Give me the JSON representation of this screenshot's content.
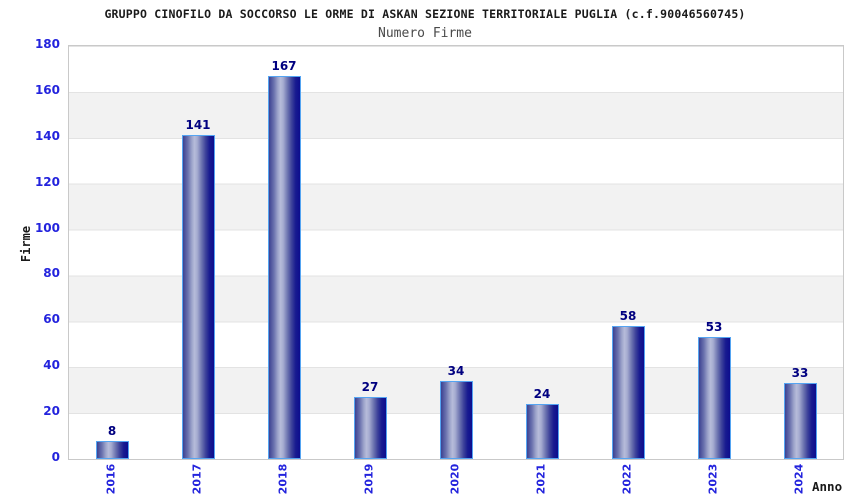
{
  "chart_data": {
    "type": "bar",
    "title": "GRUPPO CINOFILO DA SOCCORSO LE ORME DI ASKAN SEZIONE TERRITORIALE PUGLIA (c.f.90046560745)",
    "subtitle": "Numero Firme",
    "categories": [
      "2016",
      "2017",
      "2018",
      "2019",
      "2020",
      "2021",
      "2022",
      "2023",
      "2024"
    ],
    "values": [
      8,
      141,
      167,
      27,
      34,
      24,
      58,
      53,
      33
    ],
    "xlabel": "Anno",
    "ylabel": "Firme",
    "ylim": [
      0,
      180
    ],
    "ytick_step": 20,
    "ytick_labels": [
      "0",
      "20",
      "40",
      "60",
      "80",
      "100",
      "120",
      "140",
      "160",
      "180"
    ],
    "grid": "alternating horizontal bands every 20 units, light gray on white",
    "legend": "none",
    "colors": {
      "bar_dark": "#0d0d8e",
      "bar_light": "#b7bcda",
      "bar_border": "#54a4f2",
      "value_label": "#000080",
      "tick_label": "#2323dd",
      "band_fill": "#f2f2f2",
      "plot_border": "#c9c9c9",
      "title_text": "#1a1a1a",
      "subtitle_text": "#4a4a4a"
    }
  }
}
